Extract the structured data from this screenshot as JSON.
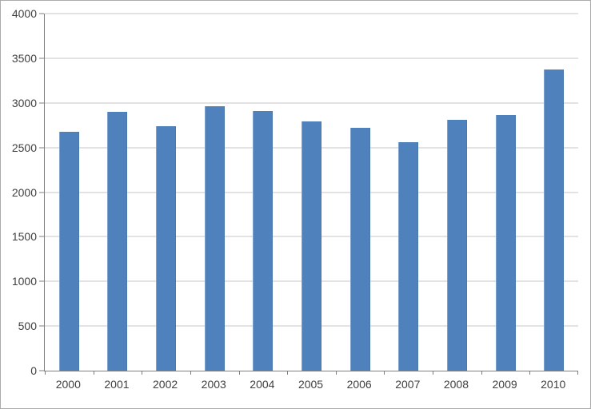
{
  "window": {
    "background": "#ffffff",
    "frame_border_color": "#ababab"
  },
  "chart_data": {
    "type": "bar",
    "categories": [
      "2000",
      "2001",
      "2002",
      "2003",
      "2004",
      "2005",
      "2006",
      "2007",
      "2008",
      "2009",
      "2010"
    ],
    "values": [
      2680,
      2900,
      2740,
      2960,
      2910,
      2790,
      2720,
      2560,
      2810,
      2860,
      3370
    ],
    "ylim": [
      0,
      4000
    ],
    "ytick_step": 500,
    "ytick_labels": [
      "0",
      "500",
      "1000",
      "1500",
      "2000",
      "2500",
      "3000",
      "3500",
      "4000"
    ],
    "grid": true,
    "legend": false,
    "plot_background": "#ffffff",
    "bar_color": "#4f81bd",
    "bar_highlight_color": "#7fa3d1",
    "bar_shadow_color": "#4a78ab",
    "gridline_color": "#c6c6c6",
    "axis_color": "#7f7f7f",
    "tick_label_color": "#404040"
  }
}
